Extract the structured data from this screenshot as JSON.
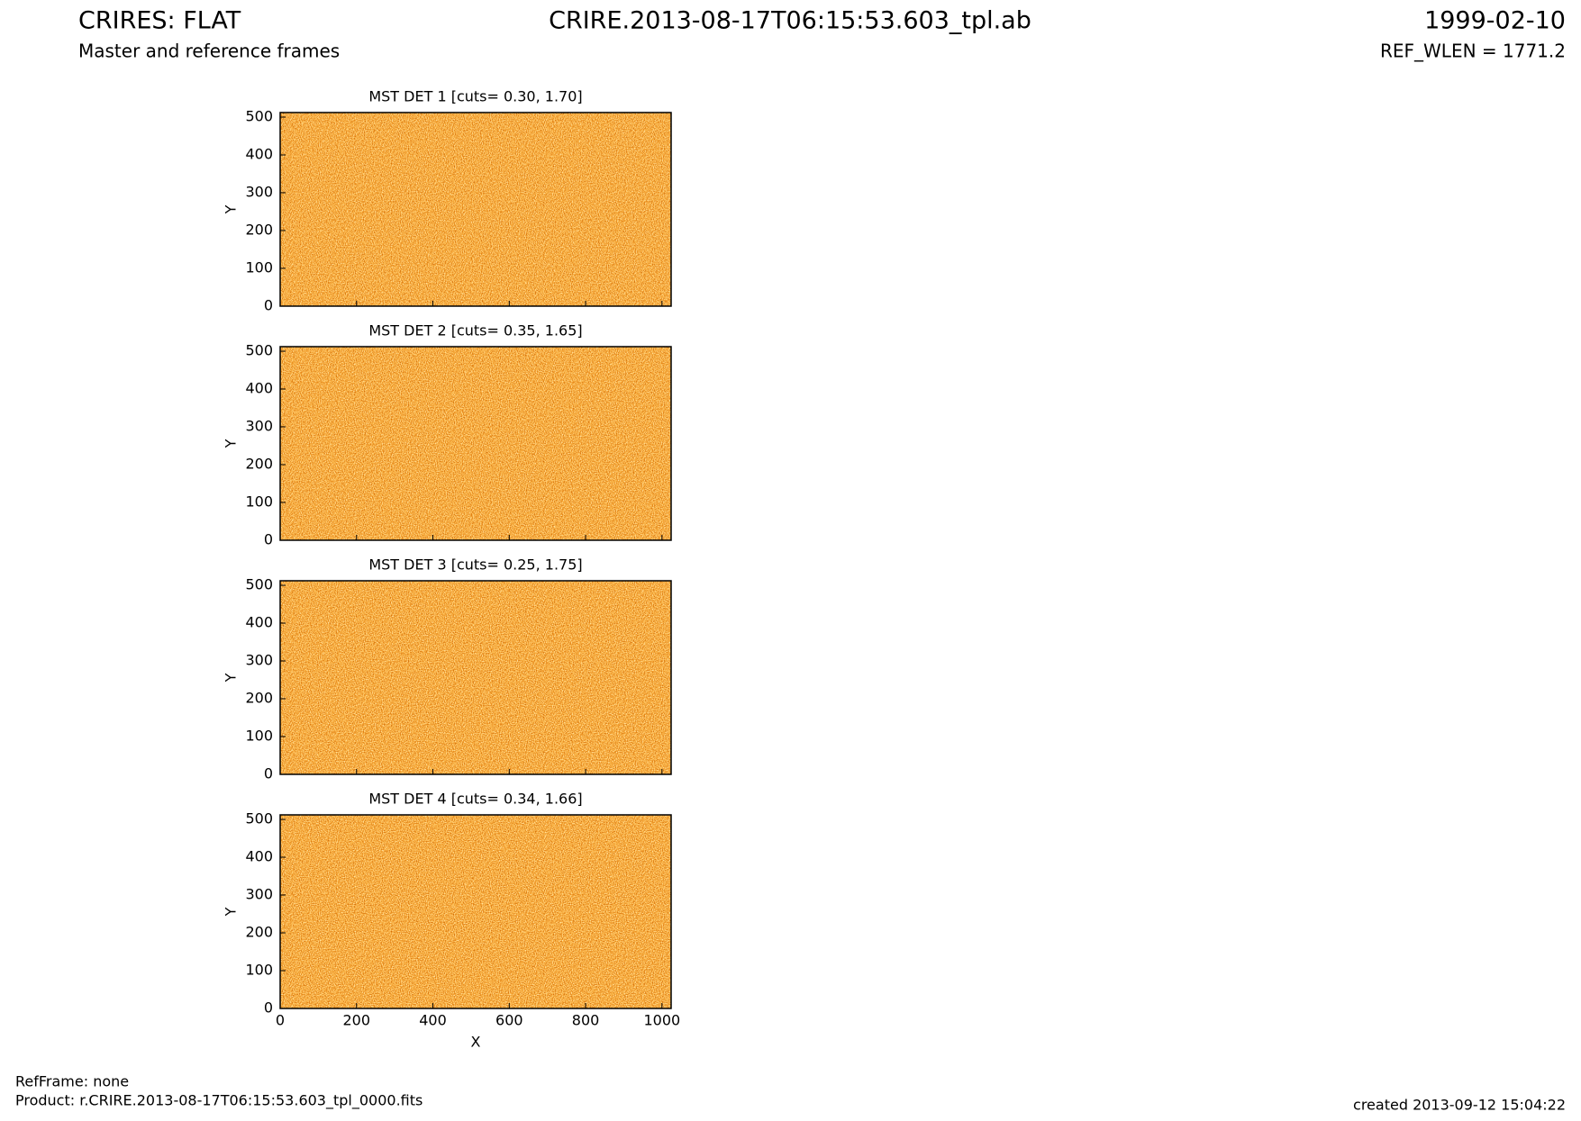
{
  "header": {
    "title": "CRIRES: FLAT",
    "subtitle": "Master and reference frames",
    "file": "CRIRE.2013-08-17T06:15:53.603_tpl.ab",
    "date": "1999-02-10",
    "ref_wlen": "REF_WLEN = 1771.2"
  },
  "footer": {
    "ref_frame": "RefFrame: none",
    "product": "Product: r.CRIRE.2013-08-17T06:15:53.603_tpl_0000.fits",
    "created": "created 2013-09-12 15:04:22"
  },
  "chart_data": [
    {
      "type": "image",
      "title": "MST DET 1 [cuts= 0.30, 1.70]",
      "y_label": "Y",
      "xlim": [
        0,
        1024
      ],
      "ylim": [
        0,
        512
      ],
      "xticks": [
        0,
        200,
        400,
        600,
        800,
        1000
      ],
      "yticks": [
        0,
        100,
        200,
        300,
        400,
        500
      ]
    },
    {
      "type": "image",
      "title": "MST DET 2 [cuts= 0.35, 1.65]",
      "y_label": "Y",
      "xlim": [
        0,
        1024
      ],
      "ylim": [
        0,
        512
      ],
      "xticks": [
        0,
        200,
        400,
        600,
        800,
        1000
      ],
      "yticks": [
        0,
        100,
        200,
        300,
        400,
        500
      ]
    },
    {
      "type": "image",
      "title": "MST DET 3 [cuts= 0.25, 1.75]",
      "y_label": "Y",
      "xlim": [
        0,
        1024
      ],
      "ylim": [
        0,
        512
      ],
      "xticks": [
        0,
        200,
        400,
        600,
        800,
        1000
      ],
      "yticks": [
        0,
        100,
        200,
        300,
        400,
        500
      ]
    },
    {
      "type": "image",
      "title": "MST DET 4 [cuts= 0.34, 1.66]",
      "y_label": "Y",
      "x_label": "X",
      "xlim": [
        0,
        1024
      ],
      "ylim": [
        0,
        512
      ],
      "xticks": [
        0,
        200,
        400,
        600,
        800,
        1000
      ],
      "yticks": [
        0,
        100,
        200,
        300,
        400,
        500
      ]
    }
  ]
}
